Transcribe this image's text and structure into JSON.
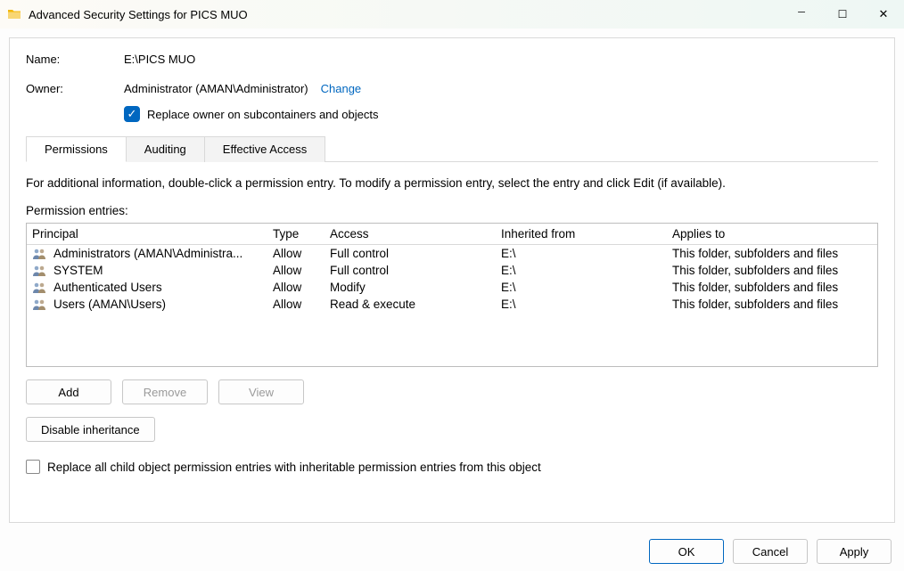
{
  "titlebar": {
    "title": "Advanced Security Settings for PICS MUO"
  },
  "fields": {
    "name_label": "Name:",
    "name_value": "E:\\PICS MUO",
    "owner_label": "Owner:",
    "owner_value": "Administrator (AMAN\\Administrator)",
    "change_link": "Change",
    "replace_owner_label": "Replace owner on subcontainers and objects"
  },
  "tabs": {
    "permissions": "Permissions",
    "auditing": "Auditing",
    "effective": "Effective Access",
    "active": "permissions"
  },
  "body": {
    "hint": "For additional information, double-click a permission entry. To modify a permission entry, select the entry and click Edit (if available).",
    "entries_label": "Permission entries:"
  },
  "columns": {
    "principal": "Principal",
    "type": "Type",
    "access": "Access",
    "inherited": "Inherited from",
    "applies": "Applies to"
  },
  "rows": [
    {
      "principal": "Administrators (AMAN\\Administra...",
      "type": "Allow",
      "access": "Full control",
      "inherited": "E:\\",
      "applies": "This folder, subfolders and files"
    },
    {
      "principal": "SYSTEM",
      "type": "Allow",
      "access": "Full control",
      "inherited": "E:\\",
      "applies": "This folder, subfolders and files"
    },
    {
      "principal": "Authenticated Users",
      "type": "Allow",
      "access": "Modify",
      "inherited": "E:\\",
      "applies": "This folder, subfolders and files"
    },
    {
      "principal": "Users (AMAN\\Users)",
      "type": "Allow",
      "access": "Read & execute",
      "inherited": "E:\\",
      "applies": "This folder, subfolders and files"
    }
  ],
  "buttons": {
    "add": "Add",
    "remove": "Remove",
    "view": "View",
    "disable": "Disable inheritance",
    "child_cb": "Replace all child object permission entries with inheritable permission entries from this object",
    "ok": "OK",
    "cancel": "Cancel",
    "apply": "Apply"
  },
  "colors": {
    "link": "#0067c0",
    "accent": "#0067c0",
    "border": "#d9d9d9"
  }
}
